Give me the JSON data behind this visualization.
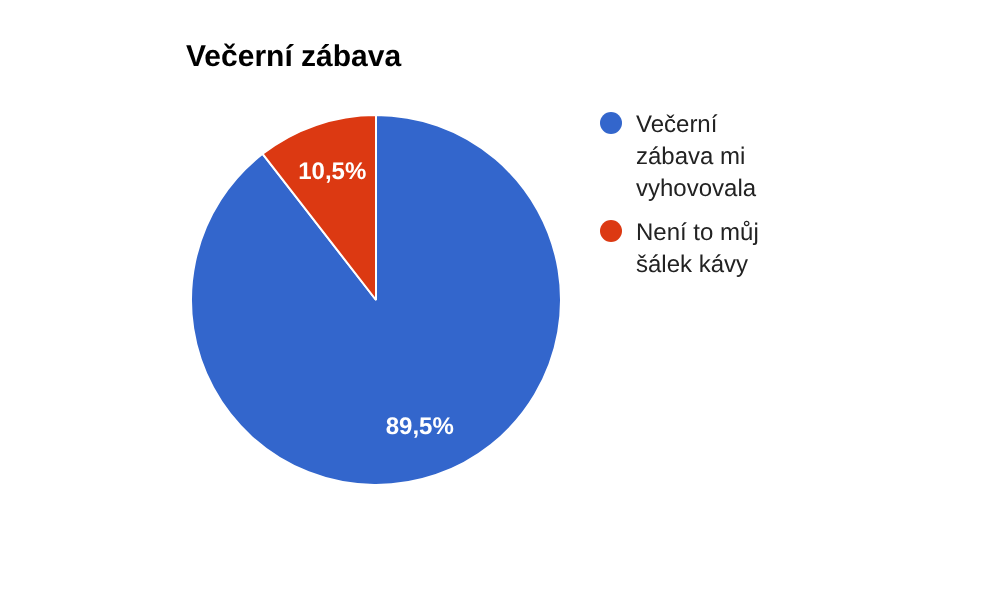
{
  "chart_data": {
    "type": "pie",
    "title": "Večerní zábava",
    "categories": [
      "Večerní zábava mi vyhovovala",
      "Není to můj šálek kávy"
    ],
    "values": [
      89.5,
      10.5
    ],
    "colors": [
      "#3366cc",
      "#dc3912"
    ],
    "value_labels": [
      "89,5%",
      "10,5%"
    ],
    "legend": "right"
  }
}
